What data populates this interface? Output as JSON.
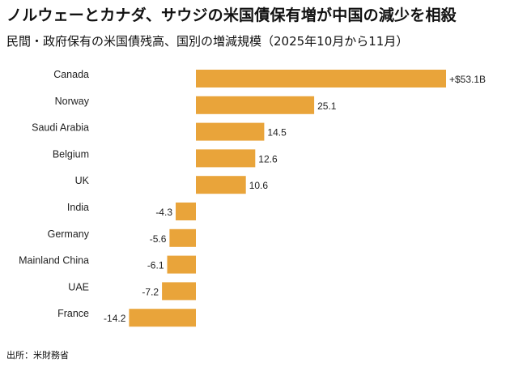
{
  "title": "ノルウェーとカナダ、サウジの米国債保有増が中国の減少を相殺",
  "subtitle": "民間・政府保有の米国債残高、国別の増減規模（2025年10月から11月）",
  "source": "出所：米財務省",
  "colors": {
    "bar": "#e9a43a"
  },
  "chart_data": {
    "type": "bar",
    "orientation": "horizontal",
    "categories": [
      "Canada",
      "Norway",
      "Saudi Arabia",
      "Belgium",
      "UK",
      "India",
      "Germany",
      "Mainland China",
      "UAE",
      "France"
    ],
    "values": [
      53.1,
      25.1,
      14.5,
      12.6,
      10.6,
      -4.3,
      -5.6,
      -6.1,
      -7.2,
      -14.2
    ],
    "value_labels": [
      "+$53.1B",
      "25.1",
      "14.5",
      "12.6",
      "10.6",
      "-4.3",
      "-5.6",
      "-6.1",
      "-7.2",
      "-14.2"
    ],
    "unit": "B USD",
    "xlim": [
      -14.2,
      53.1
    ],
    "grid": false
  }
}
